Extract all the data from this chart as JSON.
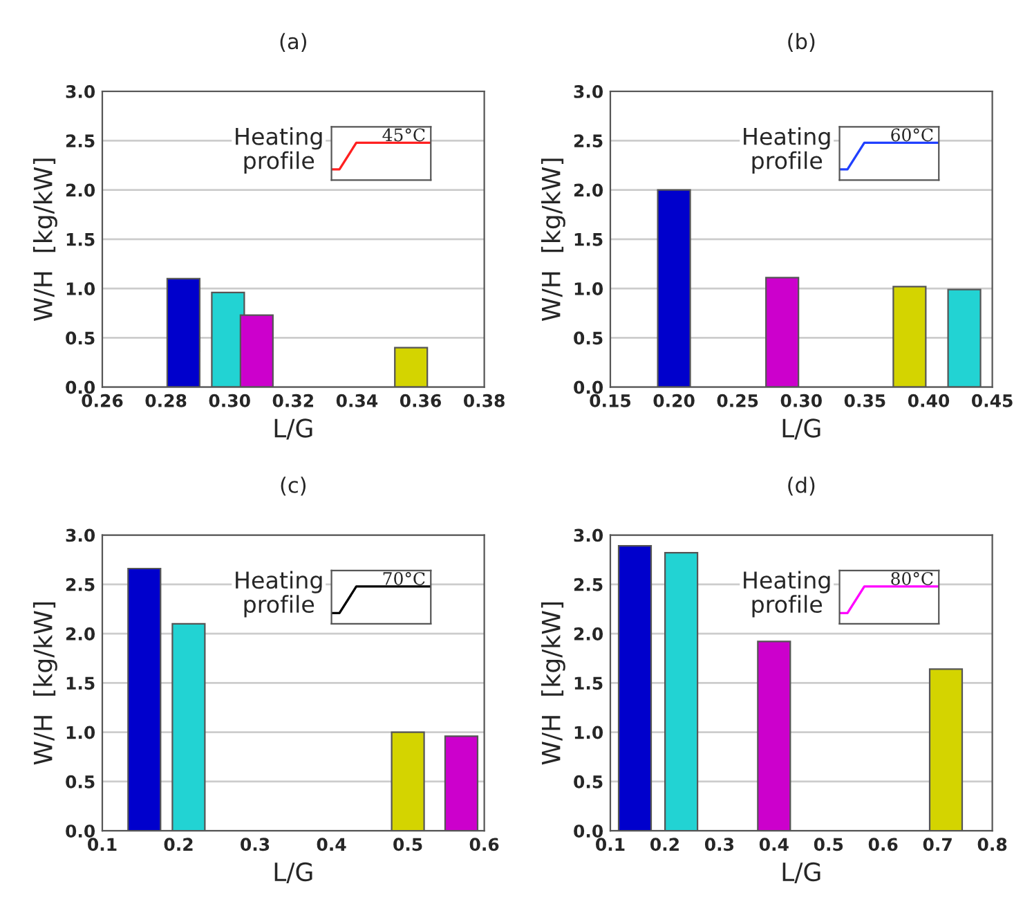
{
  "chart_data": [
    {
      "type": "bar",
      "title": "(a)",
      "xlabel": "L/G",
      "ylabel": "W/H  [kg/kW]",
      "x": [
        0.2855,
        0.2995,
        0.3085,
        0.357
      ],
      "values": [
        1.1,
        0.96,
        0.73,
        0.4
      ],
      "colors": [
        "#0000cc",
        "#22d3d3",
        "#cc00cc",
        "#d4d400"
      ],
      "xlim": [
        0.26,
        0.38
      ],
      "xticks": [
        {
          "value": 0.26,
          "label": "0.26"
        },
        {
          "value": 0.28,
          "label": "0.28"
        },
        {
          "value": 0.3,
          "label": "0.30"
        },
        {
          "value": 0.32,
          "label": "0.32"
        },
        {
          "value": 0.34,
          "label": "0.34"
        },
        {
          "value": 0.36,
          "label": "0.36"
        },
        {
          "value": 0.38,
          "label": "0.38"
        }
      ],
      "ylim": [
        0,
        3
      ],
      "yticks": [
        {
          "value": 0,
          "label": "0.0"
        },
        {
          "value": 0.5,
          "label": "0.5"
        },
        {
          "value": 1,
          "label": "1.0"
        },
        {
          "value": 1.5,
          "label": "1.5"
        },
        {
          "value": 2,
          "label": "2.0"
        },
        {
          "value": 2.5,
          "label": "2.5"
        },
        {
          "value": 3,
          "label": "3.0"
        }
      ],
      "grid": "y",
      "annotations": [
        "Heating profile",
        "45°C"
      ]
    },
    {
      "type": "bar",
      "title": "(b)",
      "xlabel": "L/G",
      "ylabel": "W/H  [kg/kW]",
      "x": [
        0.2,
        0.285,
        0.385,
        0.428
      ],
      "values": [
        2.0,
        1.11,
        1.02,
        0.99
      ],
      "colors": [
        "#0000cc",
        "#cc00cc",
        "#d4d400",
        "#22d3d3"
      ],
      "xlim": [
        0.15,
        0.45
      ],
      "xticks": [
        {
          "value": 0.15,
          "label": "0.15"
        },
        {
          "value": 0.2,
          "label": "0.20"
        },
        {
          "value": 0.25,
          "label": "0.25"
        },
        {
          "value": 0.3,
          "label": "0.30"
        },
        {
          "value": 0.35,
          "label": "0.35"
        },
        {
          "value": 0.4,
          "label": "0.40"
        },
        {
          "value": 0.45,
          "label": "0.45"
        }
      ],
      "ylim": [
        0,
        3
      ],
      "yticks": [
        {
          "value": 0,
          "label": "0.0"
        },
        {
          "value": 0.5,
          "label": "0.5"
        },
        {
          "value": 1,
          "label": "1.0"
        },
        {
          "value": 1.5,
          "label": "1.5"
        },
        {
          "value": 2,
          "label": "2.0"
        },
        {
          "value": 2.5,
          "label": "2.5"
        },
        {
          "value": 3,
          "label": "3.0"
        }
      ],
      "grid": "y",
      "annotations": [
        "Heating profile",
        "60°C"
      ]
    },
    {
      "type": "bar",
      "title": "(c)",
      "xlabel": "L/G",
      "ylabel": "W/H  [kg/kW]",
      "x": [
        0.155,
        0.213,
        0.5,
        0.57
      ],
      "values": [
        2.66,
        2.1,
        1.0,
        0.96
      ],
      "colors": [
        "#0000cc",
        "#22d3d3",
        "#d4d400",
        "#cc00cc"
      ],
      "xlim": [
        0.1,
        0.6
      ],
      "xticks": [
        0.1,
        0.2,
        0.3,
        0.4,
        0.5,
        0.6
      ],
      "ylim": [
        0,
        3
      ],
      "yticks": [
        {
          "value": 0,
          "label": "0.0"
        },
        {
          "value": 0.5,
          "label": "0.5"
        },
        {
          "value": 1,
          "label": "1.0"
        },
        {
          "value": 1.5,
          "label": "1.5"
        },
        {
          "value": 2,
          "label": "2.0"
        },
        {
          "value": 2.5,
          "label": "2.5"
        },
        {
          "value": 3,
          "label": "3.0"
        }
      ],
      "grid": "y",
      "annotations": [
        "Heating profile",
        "70°C"
      ]
    },
    {
      "type": "bar",
      "title": "(d)",
      "xlabel": "L/G",
      "ylabel": "W/H  [kg/kW]",
      "x": [
        0.145,
        0.23,
        0.4,
        0.715
      ],
      "values": [
        2.89,
        2.82,
        1.92,
        1.64
      ],
      "colors": [
        "#0000cc",
        "#22d3d3",
        "#cc00cc",
        "#d4d400"
      ],
      "xlim": [
        0.1,
        0.8
      ],
      "xticks": [
        0.1,
        0.2,
        0.3,
        0.4,
        0.5,
        0.6,
        0.7,
        0.8
      ],
      "ylim": [
        0,
        3
      ],
      "yticks": [
        {
          "value": 0,
          "label": "0.0"
        },
        {
          "value": 0.5,
          "label": "0.5"
        },
        {
          "value": 1,
          "label": "1.0"
        },
        {
          "value": 1.5,
          "label": "1.5"
        },
        {
          "value": 2,
          "label": "2.0"
        },
        {
          "value": 2.5,
          "label": "2.5"
        },
        {
          "value": 3,
          "label": "3.0"
        }
      ],
      "grid": "y",
      "annotations": [
        "Heating profile",
        "80°C"
      ]
    }
  ]
}
